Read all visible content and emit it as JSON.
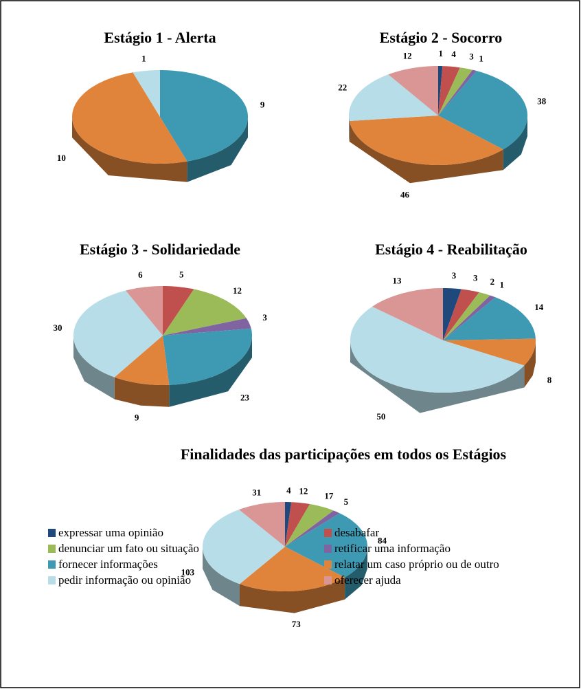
{
  "legend": {
    "names": [
      "expressar uma opinião",
      "desabafar",
      "denunciar um fato ou situação",
      "retificar uma informação",
      "fornecer informações",
      "relatar um caso próprio ou de outro",
      "pedir informação ou opinião",
      "oferecer ajuda"
    ],
    "colors": [
      "#1f497d",
      "#c0504d",
      "#9bbb59",
      "#8064a2",
      "#3d9ab2",
      "#e0843c",
      "#b7dde8",
      "#d99694"
    ]
  },
  "chart_data": [
    {
      "type": "pie",
      "title": "Estágio 1 - Alerta",
      "values": [
        0,
        0,
        0,
        0,
        9,
        10,
        1,
        0
      ]
    },
    {
      "type": "pie",
      "title": "Estágio 2 - Socorro",
      "values": [
        1,
        4,
        3,
        1,
        38,
        46,
        22,
        12
      ]
    },
    {
      "type": "pie",
      "title": "Estágio 3 - Solidariedade",
      "values": [
        0,
        5,
        12,
        3,
        23,
        9,
        30,
        6
      ]
    },
    {
      "type": "pie",
      "title": "Estágio 4 - Reabilitação",
      "values": [
        3,
        3,
        2,
        1,
        14,
        8,
        50,
        13
      ]
    },
    {
      "type": "pie",
      "title": "Finalidades das participações em todos os Estágios",
      "values": [
        4,
        12,
        17,
        5,
        84,
        73,
        103,
        31
      ]
    }
  ]
}
